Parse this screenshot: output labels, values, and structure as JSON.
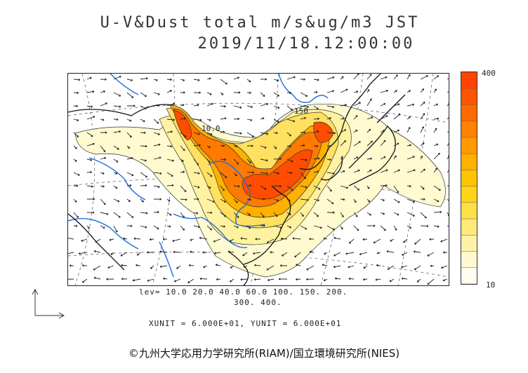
{
  "title": {
    "line1": "U-V&Dust total m/s&ug/m3 JST",
    "line2": "2019/11/18.12:00:00"
  },
  "colorbar": {
    "max_label": "400",
    "min_label": "10",
    "levels": 13,
    "colors": [
      "#fffdf0",
      "#fff8d0",
      "#fff2a8",
      "#ffe97a",
      "#ffdf4a",
      "#ffd41a",
      "#ffc400",
      "#ffb000",
      "#ff9a00",
      "#ff8200",
      "#ff6a00",
      "#ff5500",
      "#ff4400"
    ]
  },
  "map": {
    "contour_labels": [
      "10.0",
      "150"
    ],
    "coast_color": "#111111",
    "river_color": "#1e6fe0"
  },
  "info": {
    "levels_line1": "lev= 10.0 20.0 40.0 60.0 100. 150. 200.",
    "levels_line2": "300. 400.",
    "units": "XUNIT = 6.000E+01, YUNIT = 6.000E+01"
  },
  "copyright": "©九州大学応用力学研究所(RIAM)/国立環境研究所(NIES)"
}
